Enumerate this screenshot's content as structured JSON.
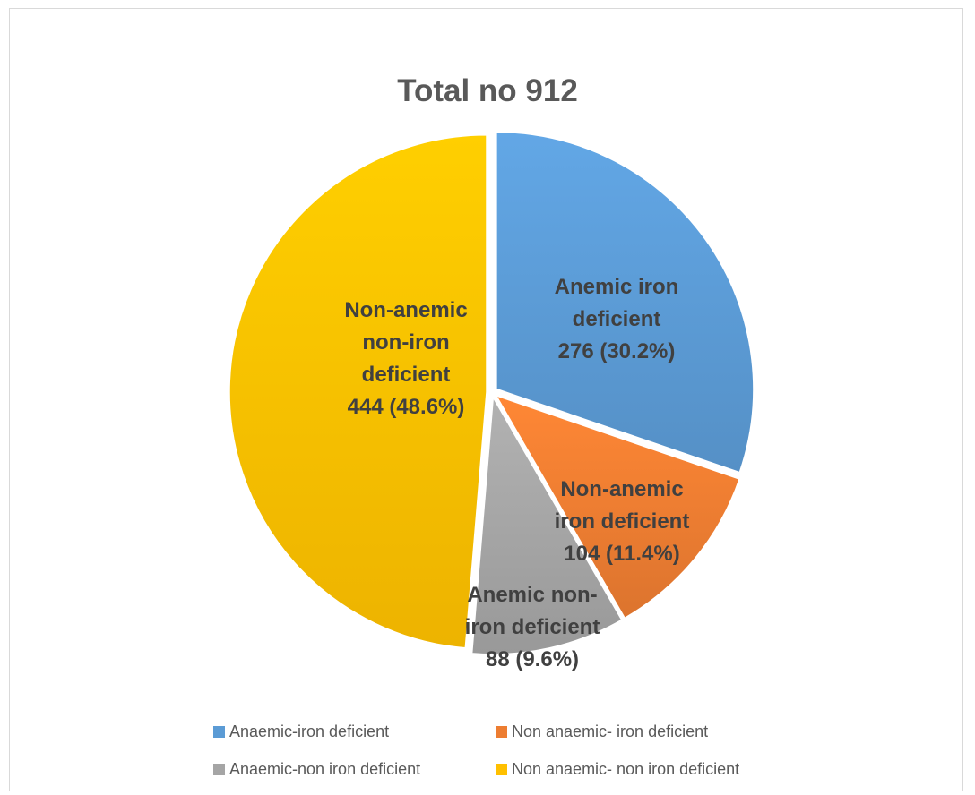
{
  "chart_data": {
    "type": "pie",
    "title": "Total no 912",
    "slices": [
      {
        "key": "a",
        "legend": "Anaemic-iron deficient",
        "value": 276,
        "percent": 30.2,
        "color": "#5b9bd5",
        "label_lines": [
          "Anemic iron",
          "deficient",
          "276 (30.2%)"
        ]
      },
      {
        "key": "b",
        "legend": "Non anaemic- iron deficient",
        "value": 104,
        "percent": 11.4,
        "color": "#ed7d31",
        "label_lines": [
          "Non-anemic",
          "iron deficient",
          "104 (11.4%)"
        ]
      },
      {
        "key": "c",
        "legend": "Anaemic-non iron deficient",
        "value": 88,
        "percent": 9.6,
        "color": "#a5a5a5",
        "label_lines": [
          "Anemic non-",
          "iron deficient",
          "88 (9.6%)"
        ]
      },
      {
        "key": "d",
        "legend": "Non anaemic- non iron deficient",
        "value": 444,
        "percent": 48.6,
        "color": "#ffc000",
        "label_lines": [
          "Non-anemic",
          "non-iron",
          "deficient",
          "444 (48.6%)"
        ]
      }
    ],
    "legend_position": "bottom"
  }
}
